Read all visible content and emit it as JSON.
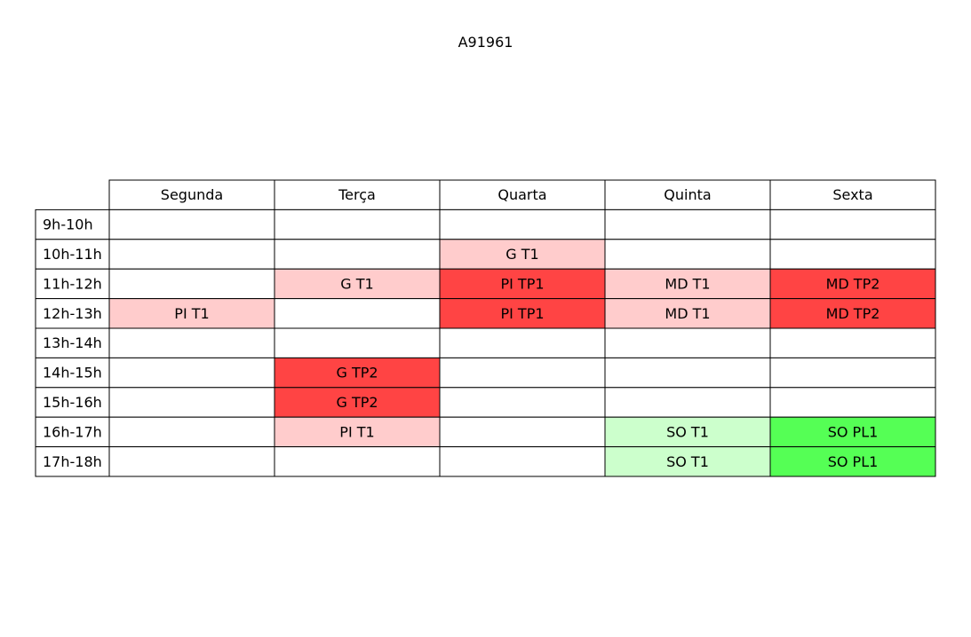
{
  "chart_data": {
    "type": "table",
    "title": "A91961",
    "columns": [
      "Segunda",
      "Terça",
      "Quarta",
      "Quinta",
      "Sexta"
    ],
    "rows": [
      {
        "label": "9h-10h",
        "cells": [
          "",
          "",
          "",
          "",
          ""
        ]
      },
      {
        "label": "10h-11h",
        "cells": [
          "",
          "",
          "G T1",
          "",
          ""
        ]
      },
      {
        "label": "11h-12h",
        "cells": [
          "",
          "G T1",
          "PI TP1",
          "MD T1",
          "MD TP2"
        ]
      },
      {
        "label": "12h-13h",
        "cells": [
          "PI T1",
          "",
          "PI TP1",
          "MD T1",
          "MD TP2"
        ]
      },
      {
        "label": "13h-14h",
        "cells": [
          "",
          "",
          "",
          "",
          ""
        ]
      },
      {
        "label": "14h-15h",
        "cells": [
          "",
          "G TP2",
          "",
          "",
          ""
        ]
      },
      {
        "label": "15h-16h",
        "cells": [
          "",
          "G TP2",
          "",
          "",
          ""
        ]
      },
      {
        "label": "16h-17h",
        "cells": [
          "",
          "PI T1",
          "",
          "SO T1",
          "SO PL1"
        ]
      },
      {
        "label": "17h-18h",
        "cells": [
          "",
          "",
          "",
          "SO T1",
          "SO PL1"
        ]
      }
    ],
    "cell_colors": [
      [
        "#ffffff",
        "#ffffff",
        "#ffffff",
        "#ffffff",
        "#ffffff"
      ],
      [
        "#ffffff",
        "#ffffff",
        "#ffcccc",
        "#ffffff",
        "#ffffff"
      ],
      [
        "#ffffff",
        "#ffcccc",
        "#ff4444",
        "#ffcccc",
        "#ff4444"
      ],
      [
        "#ffcccc",
        "#ffffff",
        "#ff4444",
        "#ffcccc",
        "#ff4444"
      ],
      [
        "#ffffff",
        "#ffffff",
        "#ffffff",
        "#ffffff",
        "#ffffff"
      ],
      [
        "#ffffff",
        "#ff4444",
        "#ffffff",
        "#ffffff",
        "#ffffff"
      ],
      [
        "#ffffff",
        "#ff4444",
        "#ffffff",
        "#ffffff",
        "#ffffff"
      ],
      [
        "#ffffff",
        "#ffcccc",
        "#ffffff",
        "#ccffcc",
        "#55ff55"
      ],
      [
        "#ffffff",
        "#ffffff",
        "#ffffff",
        "#ccffcc",
        "#55ff55"
      ]
    ],
    "border_color": "#000000"
  }
}
